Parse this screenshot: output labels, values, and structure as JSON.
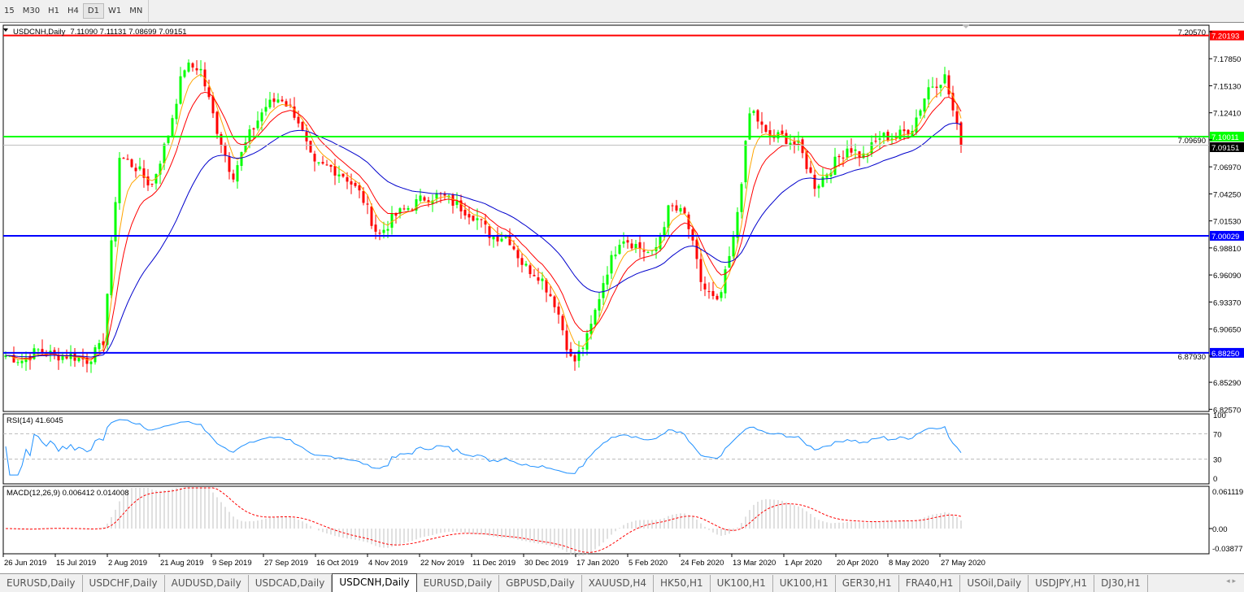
{
  "timeframes": [
    "15",
    "M30",
    "H1",
    "H4",
    "D1",
    "W1",
    "MN"
  ],
  "active_timeframe": "D1",
  "chart_header": {
    "symbol": "USDCNH,Daily",
    "ohlc": "7.11090 7.11131 7.08699 7.09151"
  },
  "price_axis": [
    "7.20570",
    "7.17850",
    "7.15130",
    "7.12410",
    "7.09690",
    "7.06970",
    "7.04250",
    "7.01530",
    "6.98810",
    "6.96090",
    "6.93370",
    "6.90650",
    "6.87930",
    "6.85290",
    "6.82570"
  ],
  "hlines": [
    {
      "label": "7.20193",
      "value": 7.20193,
      "color": "#ff0000"
    },
    {
      "label": "7.10011",
      "value": 7.10011,
      "color": "#00ff00"
    },
    {
      "label": "7.00029",
      "value": 7.00029,
      "color": "#0000ff"
    },
    {
      "label": "6.88250",
      "value": 6.8825,
      "color": "#0000ff"
    }
  ],
  "current_price": {
    "label": "7.09151",
    "value": 7.09151
  },
  "rsi": {
    "label": "RSI(14) 41.6045",
    "axis": [
      "100",
      "70",
      "30",
      "0"
    ]
  },
  "macd": {
    "label": "MACD(12,26,9) 0.006412 0.014008",
    "axis": [
      "0.061119",
      "0.00",
      "-0.03877"
    ]
  },
  "date_axis": [
    "26 Jun 2019",
    "15 Jul 2019",
    "2 Aug 2019",
    "21 Aug 2019",
    "9 Sep 2019",
    "27 Sep 2019",
    "16 Oct 2019",
    "4 Nov 2019",
    "22 Nov 2019",
    "11 Dec 2019",
    "30 Dec 2019",
    "17 Jan 2020",
    "5 Feb 2020",
    "24 Feb 2020",
    "13 Mar 2020",
    "1 Apr 2020",
    "20 Apr 2020",
    "8 May 2020",
    "27 May 2020"
  ],
  "tabs": [
    "EURUSD,Daily",
    "USDCHF,Daily",
    "AUDUSD,Daily",
    "USDCAD,Daily",
    "USDCNH,Daily",
    "EURUSD,Daily",
    "GBPUSD,Daily",
    "XAUUSD,H4",
    "HK50,H1",
    "UK100,H1",
    "UK100,H1",
    "GER30,H1",
    "FRA40,H1",
    "USOil,Daily",
    "USDJPY,H1",
    "DJ30,H1"
  ],
  "active_tab": "USDCNH,Daily",
  "colors": {
    "bull": "#00ff00",
    "bear": "#ff0000",
    "ma_fast": "#ffa500",
    "ma_mid": "#ff0000",
    "ma_slow": "#0000cc",
    "rsi": "#1e90ff",
    "macd_signal": "#ff0000",
    "macd_hist": "#c0c0c0"
  },
  "chart_data": {
    "type": "candlestick",
    "approx_closes": [
      6.88,
      6.875,
      6.885,
      6.88,
      6.88,
      6.875,
      6.89,
      7.08,
      7.07,
      7.05,
      7.1,
      7.17,
      7.17,
      7.11,
      7.06,
      7.1,
      7.13,
      7.14,
      7.12,
      7.07,
      7.07,
      7.06,
      7.04,
      7.0,
      7.02,
      7.03,
      7.04,
      7.04,
      7.03,
      7.02,
      7.0,
      7.0,
      6.97,
      6.96,
      6.93,
      6.87,
      6.9,
      6.96,
      7.0,
      6.99,
      6.98,
      7.03,
      7.02,
      6.95,
      6.93,
      7.0,
      7.13,
      7.1,
      7.1,
      7.09,
      7.05,
      7.07,
      7.09,
      7.08,
      7.1,
      7.1,
      7.11,
      7.15,
      7.16,
      7.09151
    ],
    "ylim": [
      6.8257,
      7.2057
    ]
  }
}
